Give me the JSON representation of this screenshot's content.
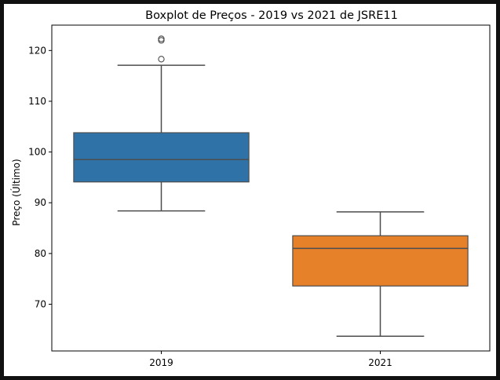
{
  "chart_data": {
    "type": "boxplot",
    "title": "Boxplot de Preços - 2019 vs 2021 de JSRE11",
    "xlabel": "",
    "ylabel": "Preço (Último)",
    "ylim": [
      60.8,
      125.0
    ],
    "yticks": [
      70,
      80,
      90,
      100,
      110,
      120
    ],
    "grid": false,
    "categories": [
      "2019",
      "2021"
    ],
    "boxes": [
      {
        "category": "2019",
        "color": "#2f72a8",
        "whisker_low": 88.4,
        "q1": 94.1,
        "median": 98.5,
        "q3": 103.8,
        "whisker_high": 117.1,
        "outliers": [
          118.3,
          122.0,
          122.3
        ]
      },
      {
        "category": "2021",
        "color": "#e6812a",
        "whisker_low": 63.7,
        "q1": 73.6,
        "median": 81.0,
        "q3": 83.5,
        "whisker_high": 88.2,
        "outliers": []
      }
    ]
  }
}
